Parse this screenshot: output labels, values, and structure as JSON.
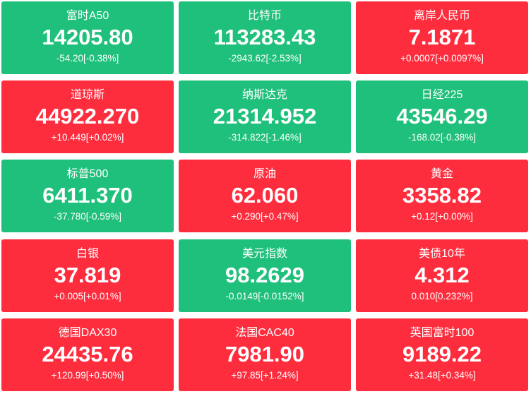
{
  "tiles": [
    {
      "name": "富时A50",
      "price": "14205.80",
      "change": "-54.20[-0.38%]",
      "color": "#1fc07b"
    },
    {
      "name": "比特币",
      "price": "113283.43",
      "change": "-2943.62[-2.53%]",
      "color": "#1fc07b"
    },
    {
      "name": "离岸人民币",
      "price": "7.1871",
      "change": "+0.0007[+0.0097%]",
      "color": "#fd2d3e"
    },
    {
      "name": "道琼斯",
      "price": "44922.270",
      "change": "+10.449[+0.02%]",
      "color": "#fd2d3e"
    },
    {
      "name": "纳斯达克",
      "price": "21314.952",
      "change": "-314.822[-1.46%]",
      "color": "#1fc07b"
    },
    {
      "name": "日经225",
      "price": "43546.29",
      "change": "-168.02[-0.38%]",
      "color": "#1fc07b"
    },
    {
      "name": "标普500",
      "price": "6411.370",
      "change": "-37.780[-0.59%]",
      "color": "#1fc07b"
    },
    {
      "name": "原油",
      "price": "62.060",
      "change": "+0.290[+0.47%]",
      "color": "#fd2d3e"
    },
    {
      "name": "黄金",
      "price": "3358.82",
      "change": "+0.12[+0.00%]",
      "color": "#fd2d3e"
    },
    {
      "name": "白银",
      "price": "37.819",
      "change": "+0.005[+0.01%]",
      "color": "#fd2d3e"
    },
    {
      "name": "美元指数",
      "price": "98.2629",
      "change": "-0.0149[-0.0152%]",
      "color": "#1fc07b"
    },
    {
      "name": "美债10年",
      "price": "4.312",
      "change": "0.010[0.232%]",
      "color": "#fd2d3e"
    },
    {
      "name": "德国DAX30",
      "price": "24435.76",
      "change": "+120.99[+0.50%]",
      "color": "#fd2d3e"
    },
    {
      "name": "法国CAC40",
      "price": "7981.90",
      "change": "+97.85[+1.24%]",
      "color": "#fd2d3e"
    },
    {
      "name": "英国富时100",
      "price": "9189.22",
      "change": "+31.48[+0.34%]",
      "color": "#fd2d3e"
    }
  ]
}
